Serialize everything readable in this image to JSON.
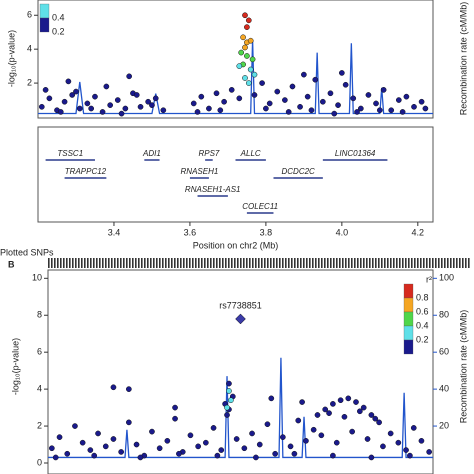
{
  "chart_data": [
    {
      "type": "scatter",
      "ylabel": "-log₁₀(p-value)",
      "y2label": "Recombination rate (cM/Mb)",
      "xlabel": "Position on chr2 (Mb)",
      "xlim": [
        3.2,
        4.24
      ],
      "xticks": [
        3.4,
        3.6,
        {
          "value": 4,
          "label": "4.0"
        },
        4.2,
        3.8
      ],
      "ylim": [
        0,
        6.9
      ],
      "yticks": [
        2,
        4,
        6
      ],
      "y2lim": [
        0,
        100
      ],
      "legend": {
        "labels": [
          "0.4",
          "0.2"
        ],
        "colors": [
          "#5fe0e8",
          "#1a1a8c"
        ]
      },
      "series": [
        {
          "name": "SNPs",
          "color": "#1a1a8c",
          "x": [
            3.21,
            3.23,
            3.25,
            3.27,
            3.29,
            3.31,
            3.33,
            3.35,
            3.37,
            3.39,
            3.41,
            3.43,
            3.45,
            3.47,
            3.49,
            3.51,
            3.53,
            3.22,
            3.26,
            3.3,
            3.34,
            3.38,
            3.42,
            3.46,
            3.5,
            3.61,
            3.63,
            3.65,
            3.67,
            3.69,
            3.71,
            3.73,
            3.77,
            3.79,
            3.81,
            3.83,
            3.85,
            3.87,
            3.89,
            3.91,
            3.93,
            3.95,
            3.97,
            3.99,
            4.01,
            4.03,
            4.05,
            4.07,
            4.09,
            4.11,
            4.13,
            4.15,
            4.17,
            4.19,
            4.21,
            3.62,
            3.68,
            3.8,
            3.86,
            3.92,
            3.98,
            4.04,
            4.1,
            4.16,
            4.22,
            3.28,
            3.44,
            3.9,
            4.0
          ],
          "values": [
            0.6,
            1.1,
            0.4,
            0.9,
            1.3,
            0.5,
            0.8,
            1.2,
            0.3,
            0.7,
            1.0,
            0.5,
            1.4,
            0.6,
            0.9,
            1.1,
            0.4,
            1.6,
            0.3,
            1.5,
            0.5,
            1.8,
            0.2,
            1.3,
            0.7,
            0.8,
            1.2,
            0.5,
            1.4,
            0.9,
            1.6,
            1.1,
            1.3,
            2.0,
            0.8,
            1.5,
            1.0,
            1.8,
            0.6,
            1.2,
            2.2,
            0.9,
            1.4,
            0.7,
            1.9,
            1.1,
            0.5,
            1.3,
            0.8,
            1.6,
            0.4,
            1.0,
            1.2,
            0.6,
            0.9,
            0.3,
            0.4,
            0.5,
            0.3,
            0.4,
            0.2,
            0.3,
            0.4,
            0.3,
            0.5,
            2.1,
            2.4,
            2.5,
            2.6
          ]
        },
        {
          "name": "r2 0.8",
          "color": "#d62a1e",
          "x": [
            3.745,
            3.755,
            3.75
          ],
          "values": [
            6.0,
            5.7,
            5.3
          ]
        },
        {
          "name": "r2 0.6",
          "color": "#f5a623",
          "x": [
            3.74,
            3.75,
            3.76,
            3.745
          ],
          "values": [
            4.7,
            4.4,
            4.5,
            4.1
          ]
        },
        {
          "name": "r2 0.4",
          "color": "#4fd64a",
          "x": [
            3.735,
            3.75,
            3.765,
            3.74
          ],
          "values": [
            3.8,
            3.6,
            3.4,
            3.1
          ]
        },
        {
          "name": "r2 0.2",
          "color": "#5fe0e8",
          "x": [
            3.73,
            3.76,
            3.77,
            3.745,
            3.755
          ],
          "values": [
            3.0,
            2.8,
            2.5,
            2.3,
            2.0
          ]
        }
      ],
      "recombination": {
        "color": "#2255cc",
        "x": [
          3.2,
          3.3,
          3.31,
          3.32,
          3.5,
          3.51,
          3.52,
          3.76,
          3.765,
          3.77,
          3.93,
          3.935,
          3.94,
          4.02,
          4.025,
          4.03,
          4.1,
          4.105,
          4.11,
          4.24
        ],
        "values": [
          3,
          3,
          30,
          3,
          3,
          20,
          3,
          3,
          66,
          3,
          3,
          55,
          3,
          3,
          63,
          3,
          3,
          25,
          3,
          3
        ]
      },
      "genes": [
        {
          "name": "TSSC1",
          "start": 3.22,
          "end": 3.35,
          "row": 0
        },
        {
          "name": "ADI1",
          "start": 3.48,
          "end": 3.52,
          "row": 0
        },
        {
          "name": "RPS7",
          "start": 3.64,
          "end": 3.66,
          "row": 0
        },
        {
          "name": "ALLC",
          "start": 3.72,
          "end": 3.8,
          "row": 0
        },
        {
          "name": "LINC01364",
          "start": 3.95,
          "end": 4.12,
          "row": 0
        },
        {
          "name": "TRAPPC12",
          "start": 3.27,
          "end": 3.38,
          "row": 1
        },
        {
          "name": "RNASEH1",
          "start": 3.6,
          "end": 3.65,
          "row": 1
        },
        {
          "name": "DCDC2C",
          "start": 3.82,
          "end": 3.95,
          "row": 1
        },
        {
          "name": "RNASEH1-AS1",
          "start": 3.62,
          "end": 3.7,
          "row": 2
        },
        {
          "name": "COLEC11",
          "start": 3.75,
          "end": 3.82,
          "row": 3
        }
      ]
    },
    {
      "type": "scatter",
      "panel_label": "B",
      "track_label": "Plotted SNPs",
      "ylabel": "-log₁₀(p-value)",
      "y2label": "Recombination rate (cM/Mb)",
      "xlim": [
        0,
        1
      ],
      "ylim": [
        0,
        10.45
      ],
      "yticks": [
        0,
        2,
        4,
        6,
        8,
        10
      ],
      "y2lim": [
        0,
        104.5
      ],
      "y2ticks": [
        20,
        40,
        60,
        80,
        100
      ],
      "legend": {
        "title": "r²",
        "labels": [
          "0.8",
          "0.6",
          "0.4",
          "0.2"
        ],
        "colors": [
          "#d62a1e",
          "#f5a623",
          "#4fd64a",
          "#5fe0e8",
          "#1a1a8c"
        ]
      },
      "annotation": {
        "label": "rs7738851",
        "x": 0.5,
        "y": 7.8,
        "color": "#3b3ba8"
      },
      "series": [
        {
          "name": "SNPs",
          "color": "#1a1a8c",
          "x": [
            0.01,
            0.03,
            0.05,
            0.07,
            0.09,
            0.11,
            0.13,
            0.15,
            0.17,
            0.19,
            0.21,
            0.23,
            0.25,
            0.27,
            0.29,
            0.31,
            0.33,
            0.35,
            0.37,
            0.39,
            0.41,
            0.43,
            0.45,
            0.47,
            0.49,
            0.51,
            0.53,
            0.55,
            0.57,
            0.59,
            0.61,
            0.63,
            0.65,
            0.67,
            0.69,
            0.71,
            0.73,
            0.75,
            0.77,
            0.79,
            0.81,
            0.83,
            0.85,
            0.87,
            0.89,
            0.91,
            0.93,
            0.95,
            0.97,
            0.99,
            0.17,
            0.21,
            0.02,
            0.12,
            0.24,
            0.34,
            0.44,
            0.54,
            0.64,
            0.74,
            0.84,
            0.94,
            0.46,
            0.47,
            0.48,
            0.465,
            0.58,
            0.7,
            0.72,
            0.74,
            0.76,
            0.78,
            0.8,
            0.82,
            0.84,
            0.86,
            0.66,
            0.33
          ],
          "values": [
            0.8,
            1.4,
            0.5,
            2.0,
            1.1,
            0.7,
            1.6,
            0.9,
            1.3,
            0.6,
            2.2,
            1.0,
            0.4,
            1.7,
            0.8,
            1.2,
            2.4,
            0.6,
            1.5,
            0.9,
            1.1,
            1.9,
            0.7,
            2.9,
            1.3,
            0.8,
            1.6,
            1.0,
            2.1,
            0.5,
            1.4,
            0.9,
            2.3,
            1.2,
            1.8,
            1.5,
            2.7,
            1.1,
            2.5,
            1.7,
            2.8,
            1.3,
            2.4,
            0.9,
            1.6,
            1.1,
            0.7,
            1.9,
            1.2,
            0.6,
            4.1,
            4.0,
            0.3,
            0.4,
            0.3,
            0.5,
            0.4,
            0.3,
            0.5,
            0.4,
            0.3,
            0.4,
            3.2,
            4.3,
            3.6,
            2.6,
            3.5,
            2.6,
            2.9,
            3.2,
            3.4,
            3.5,
            3.3,
            3.0,
            2.6,
            2.2,
            3.3,
            3.0
          ]
        },
        {
          "name": "r2 0.2",
          "color": "#5fe0e8",
          "x": [
            0.47,
            0.475,
            0.465
          ],
          "values": [
            3.9,
            3.4,
            3.0
          ]
        }
      ],
      "recombination": {
        "color": "#2255cc",
        "x": [
          0,
          0.2,
          0.205,
          0.21,
          0.46,
          0.465,
          0.47,
          0.6,
          0.605,
          0.61,
          0.66,
          0.665,
          0.67,
          0.92,
          0.925,
          0.93,
          1
        ],
        "values": [
          3,
          3,
          18,
          3,
          3,
          47,
          3,
          3,
          57,
          3,
          3,
          25,
          3,
          3,
          38,
          3,
          3
        ]
      }
    }
  ]
}
